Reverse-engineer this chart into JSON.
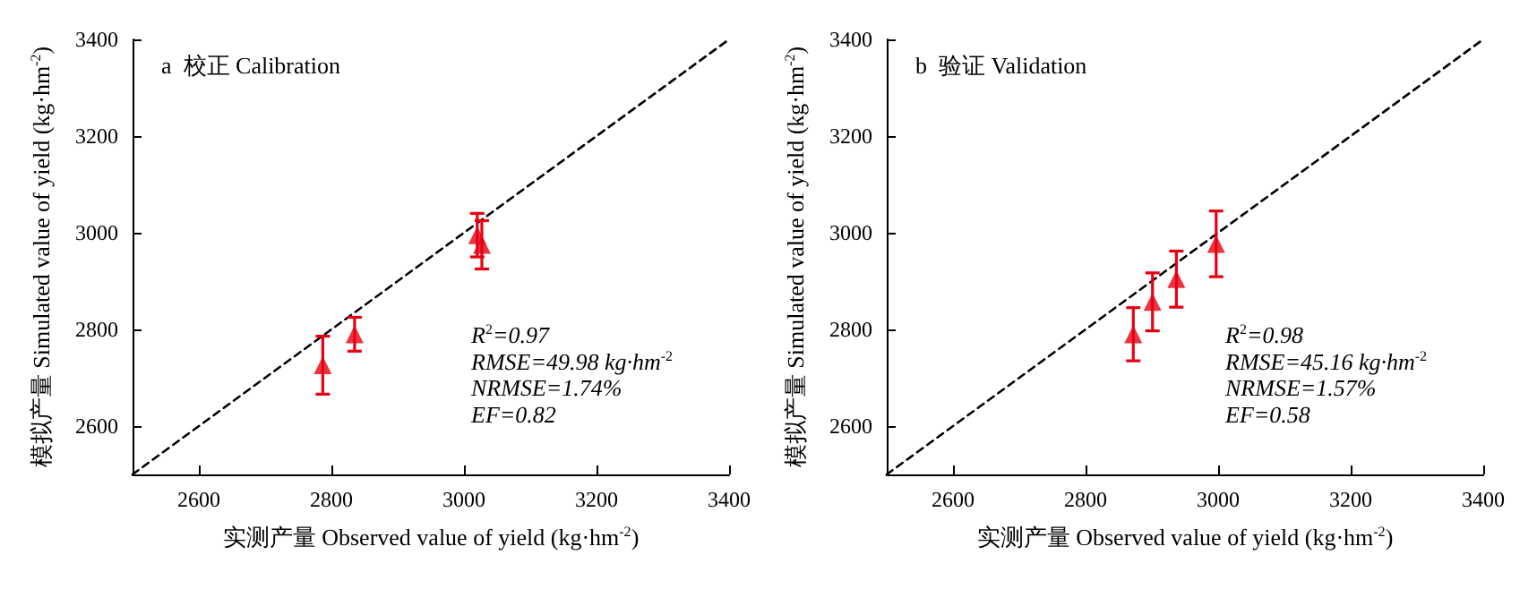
{
  "chart_data": [
    {
      "type": "scatter",
      "title": "a  校正 Calibration",
      "xlabel": "实测产量 Observed value of yield (kg·hm$^{-2}$)",
      "ylabel": "模拟产量 Simulated value of yield (kg·hm$^{-2}$)",
      "marker": "triangle",
      "grid": false,
      "xlim": [
        2500,
        3400
      ],
      "xticks": [
        2600,
        2800,
        3000,
        3200,
        3400
      ],
      "ylim": [
        2500,
        3400
      ],
      "yticks": [
        2600,
        2800,
        3000,
        3200,
        3400
      ],
      "series": [
        {
          "color": "#e60012",
          "x": [
            2787,
            2835,
            3020,
            3027
          ],
          "values": [
            2726,
            2790,
            2995,
            2975
          ],
          "errors": [
            60,
            35,
            45,
            50
          ]
        },
        {
          "type": "line",
          "color": "#000000",
          "line_style": "dashed",
          "marker": "none",
          "x": [
            2500,
            3400
          ],
          "values": [
            2500,
            3400
          ]
        }
      ],
      "annotations": [
        "R$^{2}$=0.97",
        "RMSE=49.98 kg·hm$^{-2}$",
        "NRMSE=1.74%",
        "EF=0.82"
      ]
    },
    {
      "type": "scatter",
      "title": "b  验证 Validation",
      "xlabel": "实测产量 Observed value of yield (kg·hm$^{-2}$)",
      "ylabel": "模拟产量 Simulated value of yield (kg·hm$^{-2}$)",
      "marker": "triangle",
      "grid": false,
      "xlim": [
        2500,
        3400
      ],
      "xticks": [
        2600,
        2800,
        3000,
        3200,
        3400
      ],
      "ylim": [
        2500,
        3400
      ],
      "yticks": [
        2600,
        2800,
        3000,
        3200,
        3400
      ],
      "series": [
        {
          "color": "#e60012",
          "x": [
            2872,
            2901,
            2937,
            2997
          ],
          "values": [
            2790,
            2857,
            2904,
            2977
          ],
          "errors": [
            55,
            60,
            58,
            68
          ]
        },
        {
          "type": "line",
          "color": "#000000",
          "line_style": "dashed",
          "marker": "none",
          "x": [
            2500,
            3400
          ],
          "values": [
            2500,
            3400
          ]
        }
      ],
      "annotations": [
        "R$^{2}$=0.98",
        "RMSE=45.16 kg·hm$^{-2}$",
        "NRMSE=1.57%",
        "EF=0.58"
      ]
    }
  ]
}
